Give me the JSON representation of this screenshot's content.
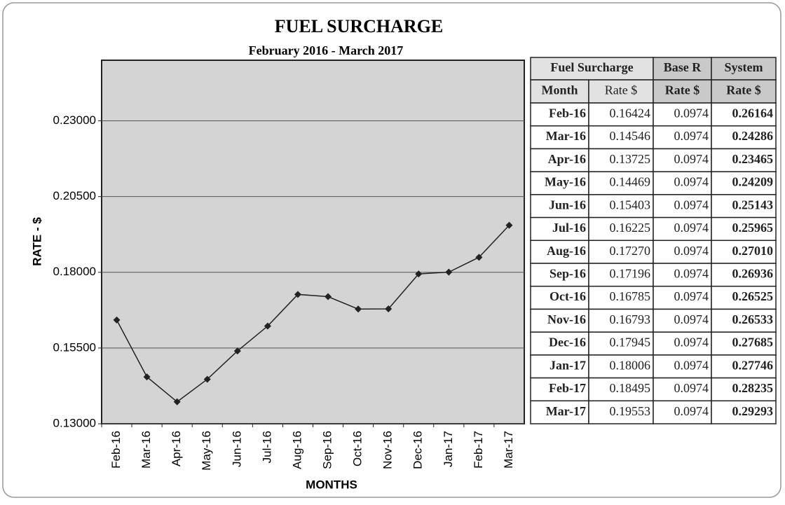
{
  "chart_data": {
    "type": "line",
    "title": "FUEL SURCHARGE",
    "subtitle": "February 2016 - March 2017",
    "x_label": "MONTHS",
    "y_label": "RATE - $",
    "categories": [
      "Feb-16",
      "Mar-16",
      "Apr-16",
      "May-16",
      "Jun-16",
      "Jul-16",
      "Aug-16",
      "Sep-16",
      "Oct-16",
      "Nov-16",
      "Dec-16",
      "Jan-17",
      "Feb-17",
      "Mar-17"
    ],
    "values": [
      0.16424,
      0.14546,
      0.13725,
      0.14469,
      0.15403,
      0.16225,
      0.1727,
      0.17196,
      0.16785,
      0.16793,
      0.17945,
      0.18006,
      0.18495,
      0.19553
    ],
    "color": "#222222",
    "ylim": [
      0.13,
      0.25
    ],
    "yticks": [
      {
        "value": 0.13,
        "label": "0.13000"
      },
      {
        "value": 0.155,
        "label": "0.15500"
      },
      {
        "value": 0.18,
        "label": "0.18000"
      },
      {
        "value": 0.205,
        "label": "0.20500"
      },
      {
        "value": 0.23,
        "label": "0.23000"
      }
    ],
    "grid": true
  },
  "table": {
    "header": [
      [
        "Fuel Surcharge",
        "Base R",
        "System"
      ],
      [
        "Month",
        "Rate $",
        "Rate $",
        "Rate $"
      ]
    ],
    "rows": [
      [
        "Feb-16",
        "0.16424",
        "0.0974",
        "0.26164"
      ],
      [
        "Mar-16",
        "0.14546",
        "0.0974",
        "0.24286"
      ],
      [
        "Apr-16",
        "0.13725",
        "0.0974",
        "0.23465"
      ],
      [
        "May-16",
        "0.14469",
        "0.0974",
        "0.24209"
      ],
      [
        "Jun-16",
        "0.15403",
        "0.0974",
        "0.25143"
      ],
      [
        "Jul-16",
        "0.16225",
        "0.0974",
        "0.25965"
      ],
      [
        "Aug-16",
        "0.17270",
        "0.0974",
        "0.27010"
      ],
      [
        "Sep-16",
        "0.17196",
        "0.0974",
        "0.26936"
      ],
      [
        "Oct-16",
        "0.16785",
        "0.0974",
        "0.26525"
      ],
      [
        "Nov-16",
        "0.16793",
        "0.0974",
        "0.26533"
      ],
      [
        "Dec-16",
        "0.17945",
        "0.0974",
        "0.27685"
      ],
      [
        "Jan-17",
        "0.18006",
        "0.0974",
        "0.27746"
      ],
      [
        "Feb-17",
        "0.18495",
        "0.0974",
        "0.28235"
      ],
      [
        "Mar-17",
        "0.19553",
        "0.0974",
        "0.29293"
      ]
    ]
  }
}
